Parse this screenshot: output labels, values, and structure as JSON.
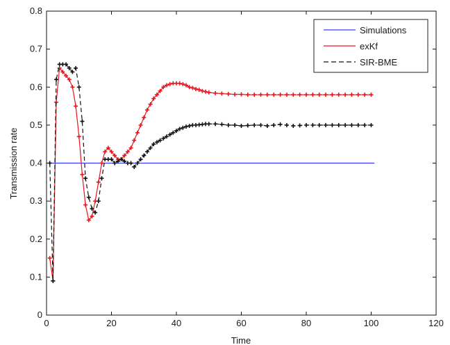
{
  "chart_data": {
    "type": "line",
    "xlabel": "Time",
    "ylabel": "Transmission rate",
    "xlim": [
      0,
      120
    ],
    "ylim": [
      0,
      0.8
    ],
    "xticks": [
      0,
      20,
      40,
      60,
      80,
      100,
      120
    ],
    "yticks": [
      0,
      0.1,
      0.2,
      0.3,
      0.4,
      0.5,
      0.6,
      0.7,
      0.8
    ],
    "grid": false,
    "legend_position": "top-right",
    "series": [
      {
        "name": "Simulations",
        "color": "#3a3aff",
        "line_style": "solid",
        "marker": "none",
        "x": [
          1,
          101
        ],
        "y": [
          0.4,
          0.4
        ]
      },
      {
        "name": "exKf",
        "color": "#e8141e",
        "line_style": "solid",
        "marker": "plus",
        "x": [
          1,
          2,
          3,
          4,
          5,
          6,
          7,
          8,
          9,
          10,
          11,
          12,
          13,
          14,
          15,
          16,
          17,
          18,
          19,
          20,
          21,
          22,
          23,
          24,
          25,
          26,
          27,
          28,
          29,
          30,
          31,
          32,
          33,
          34,
          35,
          36,
          37,
          38,
          39,
          40,
          41,
          42,
          43,
          44,
          45,
          46,
          47,
          48,
          49,
          50,
          52,
          54,
          56,
          58,
          60,
          62,
          64,
          66,
          68,
          70,
          72,
          74,
          76,
          78,
          80,
          82,
          84,
          86,
          88,
          90,
          92,
          94,
          96,
          98,
          100
        ],
        "y": [
          0.15,
          0.09,
          0.56,
          0.65,
          0.64,
          0.63,
          0.62,
          0.6,
          0.55,
          0.47,
          0.37,
          0.29,
          0.25,
          0.26,
          0.3,
          0.35,
          0.4,
          0.43,
          0.44,
          0.43,
          0.42,
          0.41,
          0.41,
          0.42,
          0.43,
          0.44,
          0.46,
          0.48,
          0.5,
          0.52,
          0.54,
          0.555,
          0.57,
          0.58,
          0.59,
          0.6,
          0.605,
          0.608,
          0.61,
          0.61,
          0.61,
          0.608,
          0.605,
          0.6,
          0.598,
          0.595,
          0.593,
          0.59,
          0.588,
          0.586,
          0.584,
          0.583,
          0.582,
          0.581,
          0.581,
          0.58,
          0.58,
          0.58,
          0.58,
          0.58,
          0.58,
          0.58,
          0.58,
          0.58,
          0.58,
          0.58,
          0.58,
          0.58,
          0.58,
          0.58,
          0.58,
          0.58,
          0.58,
          0.58,
          0.58
        ]
      },
      {
        "name": "SIR-BME",
        "color": "#111111",
        "line_style": "dashed",
        "marker": "plus",
        "x": [
          1,
          2,
          3,
          4,
          5,
          6,
          7,
          8,
          9,
          10,
          11,
          12,
          13,
          14,
          15,
          16,
          17,
          18,
          19,
          20,
          21,
          22,
          23,
          24,
          25,
          26,
          27,
          28,
          29,
          30,
          31,
          32,
          33,
          34,
          35,
          36,
          37,
          38,
          39,
          40,
          41,
          42,
          43,
          44,
          45,
          46,
          47,
          48,
          49,
          50,
          52,
          54,
          56,
          58,
          60,
          62,
          64,
          66,
          68,
          70,
          72,
          74,
          76,
          78,
          80,
          82,
          84,
          86,
          88,
          90,
          92,
          94,
          96,
          98,
          100
        ],
        "y": [
          0.4,
          0.09,
          0.62,
          0.66,
          0.66,
          0.66,
          0.65,
          0.64,
          0.65,
          0.6,
          0.51,
          0.36,
          0.31,
          0.28,
          0.27,
          0.3,
          0.36,
          0.41,
          0.41,
          0.41,
          0.4,
          0.405,
          0.41,
          0.405,
          0.4,
          0.4,
          0.39,
          0.4,
          0.41,
          0.42,
          0.43,
          0.44,
          0.45,
          0.455,
          0.46,
          0.465,
          0.47,
          0.475,
          0.48,
          0.485,
          0.49,
          0.493,
          0.496,
          0.498,
          0.5,
          0.5,
          0.501,
          0.502,
          0.503,
          0.503,
          0.503,
          0.502,
          0.5,
          0.5,
          0.498,
          0.499,
          0.5,
          0.5,
          0.498,
          0.5,
          0.502,
          0.5,
          0.498,
          0.499,
          0.5,
          0.5,
          0.5,
          0.5,
          0.5,
          0.5,
          0.5,
          0.5,
          0.5,
          0.5,
          0.5
        ]
      }
    ]
  }
}
